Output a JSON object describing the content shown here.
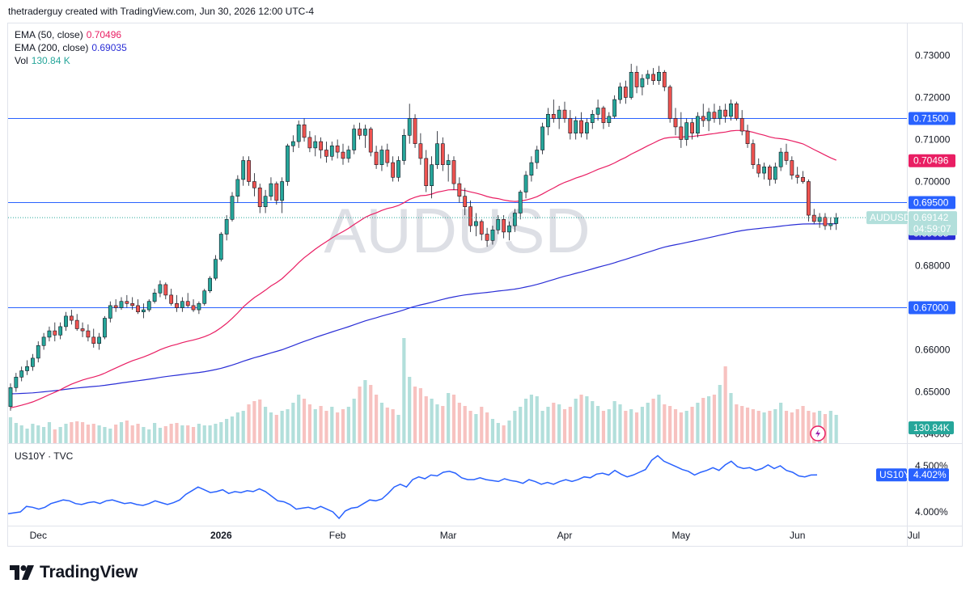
{
  "header": {
    "credit": "thetraderguy created with TradingView.com, Jun 30, 2026 12:00 UTC-4"
  },
  "legend": {
    "ema50": {
      "label": "EMA (50, close)",
      "value": "0.70496",
      "color": "#e91e63"
    },
    "ema200": {
      "label": "EMA (200, close)",
      "value": "0.69035",
      "color": "#2a2ed6"
    },
    "vol": {
      "label": "Vol",
      "value": "130.84 K",
      "color": "#26a69a"
    }
  },
  "watermark": "AUDUSD",
  "colors": {
    "up": "#26a69a",
    "down": "#ef5350",
    "up_vol": "#b2dfdb",
    "down_vol": "#f7c2c0",
    "hline": "#2962ff",
    "us10y": "#2962ff"
  },
  "price_axis": {
    "ticks": [
      "0.73000",
      "0.72000",
      "0.71000",
      "0.70000",
      "0.68000",
      "0.66000",
      "0.65000",
      "0.64000"
    ],
    "tick_values": [
      0.73,
      0.72,
      0.71,
      0.7,
      0.68,
      0.66,
      0.65,
      0.64
    ]
  },
  "horizontal_levels": [
    {
      "value": 0.715,
      "label": "0.71500"
    },
    {
      "value": 0.695,
      "label": "0.69500"
    },
    {
      "value": 0.67,
      "label": "0.67000"
    }
  ],
  "last_price": {
    "symbol": "AUDUSD",
    "price": "0.69142",
    "countdown": "04:59:07",
    "value": 0.69142
  },
  "ema_pills": {
    "ema50": "0.70496",
    "ema200": "0.69035"
  },
  "vol_pill": "130.84K",
  "lower_pane": {
    "title": "US10Y · TVC",
    "ticks": [
      "4.500%",
      "4.000%"
    ],
    "tick_values": [
      4.5,
      4.0
    ],
    "pill_symbol": "US10Y",
    "pill_value": "4.402%"
  },
  "time_axis": {
    "labels": [
      "Dec",
      "2026",
      "Feb",
      "Mar",
      "Apr",
      "May",
      "Jun",
      "Jul"
    ],
    "label_index": [
      5,
      38,
      59,
      79,
      100,
      121,
      142,
      163
    ]
  },
  "footer": {
    "brand": "TradingView"
  },
  "chart_data": [
    {
      "type": "candlestick",
      "title": "AUDUSD",
      "ylim": [
        0.637,
        0.733
      ],
      "x_axis": "daily, Nov 2025 – Jul 2026",
      "candles": [
        [
          0.6465,
          0.652,
          0.6455,
          0.651
        ],
        [
          0.651,
          0.6545,
          0.65,
          0.6535
        ],
        [
          0.6535,
          0.656,
          0.6525,
          0.655
        ],
        [
          0.655,
          0.6575,
          0.654,
          0.656
        ],
        [
          0.656,
          0.659,
          0.655,
          0.658
        ],
        [
          0.658,
          0.662,
          0.657,
          0.661
        ],
        [
          0.661,
          0.664,
          0.66,
          0.663
        ],
        [
          0.663,
          0.6655,
          0.662,
          0.6645
        ],
        [
          0.6645,
          0.6665,
          0.662,
          0.6635
        ],
        [
          0.6635,
          0.6665,
          0.6625,
          0.6655
        ],
        [
          0.6655,
          0.669,
          0.6645,
          0.668
        ],
        [
          0.668,
          0.6695,
          0.666,
          0.667
        ],
        [
          0.667,
          0.6685,
          0.6645,
          0.665
        ],
        [
          0.665,
          0.6665,
          0.663,
          0.6645
        ],
        [
          0.6645,
          0.666,
          0.662,
          0.663
        ],
        [
          0.663,
          0.665,
          0.6605,
          0.6615
        ],
        [
          0.6615,
          0.664,
          0.66,
          0.663
        ],
        [
          0.663,
          0.668,
          0.6625,
          0.6675
        ],
        [
          0.6675,
          0.6715,
          0.6665,
          0.6705
        ],
        [
          0.6705,
          0.672,
          0.669,
          0.67
        ],
        [
          0.67,
          0.6725,
          0.6695,
          0.6715
        ],
        [
          0.6715,
          0.673,
          0.67,
          0.671
        ],
        [
          0.671,
          0.6725,
          0.6695,
          0.6705
        ],
        [
          0.6705,
          0.672,
          0.6685,
          0.669
        ],
        [
          0.669,
          0.671,
          0.6675,
          0.6695
        ],
        [
          0.6695,
          0.672,
          0.669,
          0.6715
        ],
        [
          0.6715,
          0.6745,
          0.671,
          0.6735
        ],
        [
          0.6735,
          0.6765,
          0.6725,
          0.6755
        ],
        [
          0.6755,
          0.676,
          0.672,
          0.673
        ],
        [
          0.673,
          0.6745,
          0.6705,
          0.671
        ],
        [
          0.671,
          0.673,
          0.669,
          0.67
        ],
        [
          0.67,
          0.6725,
          0.669,
          0.6715
        ],
        [
          0.6715,
          0.6735,
          0.67,
          0.6705
        ],
        [
          0.6705,
          0.672,
          0.669,
          0.6695
        ],
        [
          0.6695,
          0.6715,
          0.6685,
          0.671
        ],
        [
          0.671,
          0.6745,
          0.6705,
          0.674
        ],
        [
          0.674,
          0.6775,
          0.6735,
          0.677
        ],
        [
          0.677,
          0.6825,
          0.6765,
          0.6815
        ],
        [
          0.6815,
          0.688,
          0.681,
          0.6875
        ],
        [
          0.6875,
          0.692,
          0.686,
          0.691
        ],
        [
          0.691,
          0.6975,
          0.6905,
          0.6965
        ],
        [
          0.6965,
          0.7015,
          0.695,
          0.7005
        ],
        [
          0.7005,
          0.706,
          0.699,
          0.705
        ],
        [
          0.705,
          0.706,
          0.699,
          0.7
        ],
        [
          0.7,
          0.702,
          0.6965,
          0.6985
        ],
        [
          0.6985,
          0.6995,
          0.6925,
          0.694
        ],
        [
          0.694,
          0.698,
          0.6925,
          0.6965
        ],
        [
          0.6965,
          0.701,
          0.6955,
          0.6995
        ],
        [
          0.6995,
          0.7,
          0.6945,
          0.6955
        ],
        [
          0.6955,
          0.701,
          0.6925,
          0.7
        ],
        [
          0.7,
          0.709,
          0.699,
          0.7085
        ],
        [
          0.7085,
          0.711,
          0.707,
          0.7095
        ],
        [
          0.7095,
          0.7145,
          0.708,
          0.7135
        ],
        [
          0.7135,
          0.715,
          0.7095,
          0.7105
        ],
        [
          0.7105,
          0.712,
          0.707,
          0.708
        ],
        [
          0.708,
          0.711,
          0.706,
          0.7095
        ],
        [
          0.7095,
          0.7105,
          0.7055,
          0.7075
        ],
        [
          0.7075,
          0.7095,
          0.7045,
          0.706
        ],
        [
          0.706,
          0.7095,
          0.705,
          0.7085
        ],
        [
          0.7085,
          0.71,
          0.7055,
          0.707
        ],
        [
          0.707,
          0.709,
          0.704,
          0.7055
        ],
        [
          0.7055,
          0.7085,
          0.7045,
          0.7075
        ],
        [
          0.7075,
          0.7135,
          0.7065,
          0.7125
        ],
        [
          0.7125,
          0.714,
          0.71,
          0.711
        ],
        [
          0.711,
          0.7135,
          0.708,
          0.7125
        ],
        [
          0.7125,
          0.713,
          0.706,
          0.707
        ],
        [
          0.707,
          0.7085,
          0.703,
          0.704
        ],
        [
          0.704,
          0.7085,
          0.7025,
          0.7075
        ],
        [
          0.7075,
          0.709,
          0.7035,
          0.7045
        ],
        [
          0.7045,
          0.706,
          0.7,
          0.701
        ],
        [
          0.701,
          0.706,
          0.7,
          0.705
        ],
        [
          0.705,
          0.7125,
          0.704,
          0.711
        ],
        [
          0.711,
          0.7185,
          0.709,
          0.715
        ],
        [
          0.715,
          0.716,
          0.708,
          0.709
        ],
        [
          0.709,
          0.7115,
          0.704,
          0.7055
        ],
        [
          0.7055,
          0.7075,
          0.6975,
          0.699
        ],
        [
          0.699,
          0.706,
          0.696,
          0.704
        ],
        [
          0.704,
          0.712,
          0.703,
          0.709
        ],
        [
          0.709,
          0.7105,
          0.7025,
          0.704
        ],
        [
          0.704,
          0.7065,
          0.7,
          0.705
        ],
        [
          0.705,
          0.706,
          0.698,
          0.6995
        ],
        [
          0.6995,
          0.701,
          0.695,
          0.6965
        ],
        [
          0.6965,
          0.6985,
          0.692,
          0.694
        ],
        [
          0.694,
          0.6955,
          0.688,
          0.6895
        ],
        [
          0.6895,
          0.6925,
          0.687,
          0.6905
        ],
        [
          0.6905,
          0.691,
          0.686,
          0.6875
        ],
        [
          0.6875,
          0.689,
          0.6845,
          0.686
        ],
        [
          0.686,
          0.6895,
          0.685,
          0.6885
        ],
        [
          0.6885,
          0.692,
          0.6875,
          0.691
        ],
        [
          0.691,
          0.692,
          0.6865,
          0.688
        ],
        [
          0.688,
          0.6905,
          0.686,
          0.6895
        ],
        [
          0.6895,
          0.6935,
          0.688,
          0.6925
        ],
        [
          0.6925,
          0.698,
          0.691,
          0.6975
        ],
        [
          0.6975,
          0.7025,
          0.696,
          0.7015
        ],
        [
          0.7015,
          0.706,
          0.7,
          0.7045
        ],
        [
          0.7045,
          0.7085,
          0.703,
          0.7075
        ],
        [
          0.7075,
          0.714,
          0.7065,
          0.713
        ],
        [
          0.713,
          0.7175,
          0.711,
          0.716
        ],
        [
          0.716,
          0.7195,
          0.714,
          0.715
        ],
        [
          0.715,
          0.718,
          0.7125,
          0.717
        ],
        [
          0.717,
          0.719,
          0.714,
          0.715
        ],
        [
          0.715,
          0.717,
          0.71,
          0.7115
        ],
        [
          0.7115,
          0.7155,
          0.71,
          0.7145
        ],
        [
          0.7145,
          0.7165,
          0.7105,
          0.7115
        ],
        [
          0.7115,
          0.715,
          0.71,
          0.714
        ],
        [
          0.714,
          0.717,
          0.7125,
          0.716
        ],
        [
          0.716,
          0.7195,
          0.7145,
          0.7175
        ],
        [
          0.7175,
          0.718,
          0.7125,
          0.714
        ],
        [
          0.714,
          0.7165,
          0.713,
          0.7155
        ],
        [
          0.7155,
          0.7205,
          0.715,
          0.7195
        ],
        [
          0.7195,
          0.7235,
          0.7185,
          0.7225
        ],
        [
          0.7225,
          0.724,
          0.7185,
          0.72
        ],
        [
          0.72,
          0.728,
          0.7195,
          0.726
        ],
        [
          0.726,
          0.7275,
          0.721,
          0.7225
        ],
        [
          0.7225,
          0.7255,
          0.7205,
          0.7245
        ],
        [
          0.7245,
          0.7265,
          0.723,
          0.7255
        ],
        [
          0.7255,
          0.727,
          0.723,
          0.724
        ],
        [
          0.724,
          0.7275,
          0.723,
          0.726
        ],
        [
          0.726,
          0.7265,
          0.7215,
          0.7225
        ],
        [
          0.7225,
          0.723,
          0.714,
          0.715
        ],
        [
          0.715,
          0.7175,
          0.711,
          0.713
        ],
        [
          0.713,
          0.7165,
          0.708,
          0.71
        ],
        [
          0.71,
          0.715,
          0.7085,
          0.714
        ],
        [
          0.714,
          0.715,
          0.71,
          0.7115
        ],
        [
          0.7115,
          0.7165,
          0.7105,
          0.7155
        ],
        [
          0.7155,
          0.7185,
          0.713,
          0.7145
        ],
        [
          0.7145,
          0.7175,
          0.712,
          0.7165
        ],
        [
          0.7165,
          0.7185,
          0.714,
          0.715
        ],
        [
          0.715,
          0.718,
          0.7135,
          0.717
        ],
        [
          0.717,
          0.7185,
          0.714,
          0.7155
        ],
        [
          0.7155,
          0.7195,
          0.7145,
          0.7185
        ],
        [
          0.7185,
          0.719,
          0.7145,
          0.715
        ],
        [
          0.715,
          0.717,
          0.711,
          0.712
        ],
        [
          0.712,
          0.7135,
          0.708,
          0.709
        ],
        [
          0.709,
          0.71,
          0.703,
          0.704
        ],
        [
          0.704,
          0.7055,
          0.701,
          0.702
        ],
        [
          0.702,
          0.7045,
          0.7005,
          0.7035
        ],
        [
          0.7035,
          0.704,
          0.699,
          0.7005
        ],
        [
          0.7005,
          0.7045,
          0.6995,
          0.7035
        ],
        [
          0.7035,
          0.708,
          0.7025,
          0.707
        ],
        [
          0.707,
          0.709,
          0.704,
          0.705
        ],
        [
          0.705,
          0.706,
          0.7005,
          0.7015
        ],
        [
          0.7015,
          0.7035,
          0.6995,
          0.701
        ],
        [
          0.701,
          0.7025,
          0.6995,
          0.7
        ],
        [
          0.7,
          0.7005,
          0.6905,
          0.692
        ],
        [
          0.692,
          0.6935,
          0.69,
          0.6905
        ],
        [
          0.6905,
          0.6925,
          0.689,
          0.6915
        ],
        [
          0.6915,
          0.6925,
          0.6885,
          0.6895
        ],
        [
          0.6895,
          0.6915,
          0.6885,
          0.69
        ],
        [
          0.69,
          0.6925,
          0.6885,
          0.6914
        ]
      ],
      "volume": [
        32,
        25,
        22,
        18,
        24,
        22,
        20,
        26,
        17,
        20,
        24,
        26,
        27,
        26,
        23,
        24,
        22,
        20,
        18,
        23,
        26,
        28,
        22,
        24,
        20,
        17,
        25,
        19,
        21,
        24,
        25,
        22,
        22,
        20,
        24,
        22,
        22,
        24,
        26,
        30,
        33,
        38,
        40,
        48,
        52,
        54,
        45,
        38,
        35,
        40,
        42,
        50,
        60,
        55,
        48,
        42,
        46,
        40,
        45,
        38,
        42,
        45,
        55,
        70,
        78,
        72,
        60,
        50,
        44,
        42,
        35,
        130,
        82,
        70,
        68,
        58,
        55,
        48,
        46,
        62,
        60,
        50,
        46,
        40,
        36,
        45,
        38,
        30,
        25,
        22,
        28,
        40,
        45,
        55,
        60,
        58,
        40,
        45,
        50,
        48,
        42,
        45,
        55,
        60,
        58,
        52,
        46,
        40,
        42,
        52,
        48,
        40,
        42,
        38,
        45,
        50,
        55,
        60,
        48,
        46,
        42,
        38,
        40,
        45,
        50,
        56,
        58,
        60,
        72,
        95,
        62,
        48,
        46,
        44,
        42,
        40,
        38,
        40,
        42,
        50,
        40,
        38,
        42,
        46,
        40,
        38,
        40,
        36,
        40,
        35
      ],
      "volume_max": 130
    },
    {
      "type": "line",
      "title": "US10Y · TVC",
      "ylim": [
        3.95,
        4.6
      ],
      "values": [
        3.98,
        3.99,
        4.0,
        4.06,
        4.05,
        4.03,
        4.05,
        4.09,
        4.11,
        4.13,
        4.12,
        4.09,
        4.08,
        4.1,
        4.11,
        4.09,
        4.12,
        4.13,
        4.11,
        4.09,
        4.1,
        4.08,
        4.07,
        4.09,
        4.12,
        4.1,
        4.08,
        4.1,
        4.13,
        4.19,
        4.23,
        4.27,
        4.24,
        4.21,
        4.22,
        4.24,
        4.2,
        4.22,
        4.21,
        4.23,
        4.22,
        4.25,
        4.22,
        4.17,
        4.12,
        4.11,
        4.08,
        4.03,
        4.04,
        4.05,
        4.03,
        4.06,
        4.03,
        4.0,
        3.93,
        4.01,
        4.04,
        4.05,
        4.09,
        4.13,
        4.12,
        4.14,
        4.2,
        4.27,
        4.3,
        4.27,
        4.35,
        4.38,
        4.36,
        4.4,
        4.39,
        4.43,
        4.44,
        4.42,
        4.37,
        4.35,
        4.35,
        4.37,
        4.35,
        4.34,
        4.33,
        4.36,
        4.34,
        4.33,
        4.31,
        4.35,
        4.33,
        4.3,
        4.32,
        4.3,
        4.33,
        4.35,
        4.33,
        4.35,
        4.38,
        4.37,
        4.41,
        4.42,
        4.4,
        4.45,
        4.41,
        4.38,
        4.4,
        4.43,
        4.46,
        4.56,
        4.61,
        4.55,
        4.52,
        4.49,
        4.46,
        4.44,
        4.4,
        4.43,
        4.45,
        4.48,
        4.45,
        4.51,
        4.55,
        4.49,
        4.47,
        4.48,
        4.45,
        4.47,
        4.51,
        4.47,
        4.5,
        4.45,
        4.43,
        4.39,
        4.38,
        4.4,
        4.402
      ]
    }
  ]
}
